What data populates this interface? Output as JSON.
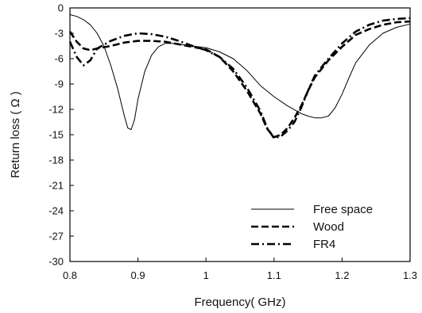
{
  "chart_data": {
    "type": "line",
    "title": "",
    "xlabel": "Frequency( GHz)",
    "ylabel": "Return loss ( Ω )",
    "xlim": [
      0.8,
      1.3
    ],
    "ylim": [
      -30,
      0
    ],
    "xticks": [
      0.8,
      0.9,
      1.0,
      1.1,
      1.2,
      1.3
    ],
    "xtick_labels": [
      "0.8",
      "0.9",
      "1",
      "1.1",
      "1.2",
      "1.3"
    ],
    "yticks": [
      0,
      -3,
      -6,
      -9,
      -12,
      -15,
      -18,
      -21,
      -24,
      -27,
      -30
    ],
    "ytick_labels": [
      "0",
      "-3",
      "-6",
      "-9",
      "-12",
      "-15",
      "-18",
      "-21",
      "-24",
      "-27",
      "-30"
    ],
    "grid": false,
    "legend_position": "bottom-right",
    "series": [
      {
        "name": "Free space",
        "style": "solid",
        "color": "#000000",
        "x": [
          0.8,
          0.81,
          0.82,
          0.83,
          0.84,
          0.85,
          0.86,
          0.87,
          0.88,
          0.885,
          0.89,
          0.895,
          0.9,
          0.91,
          0.92,
          0.93,
          0.94,
          0.95,
          0.96,
          0.97,
          0.98,
          0.99,
          1.0,
          1.02,
          1.04,
          1.06,
          1.08,
          1.1,
          1.12,
          1.14,
          1.15,
          1.16,
          1.17,
          1.18,
          1.19,
          1.2,
          1.21,
          1.22,
          1.24,
          1.26,
          1.28,
          1.3
        ],
        "y": [
          -0.8,
          -1.0,
          -1.4,
          -2.0,
          -3.0,
          -4.5,
          -6.8,
          -9.5,
          -12.8,
          -14.2,
          -14.4,
          -13.2,
          -10.8,
          -7.5,
          -5.6,
          -4.6,
          -4.2,
          -4.2,
          -4.3,
          -4.4,
          -4.5,
          -4.6,
          -4.7,
          -5.2,
          -6.0,
          -7.4,
          -9.2,
          -10.5,
          -11.6,
          -12.5,
          -12.8,
          -13.0,
          -13.0,
          -12.8,
          -11.8,
          -10.2,
          -8.3,
          -6.5,
          -4.4,
          -3.0,
          -2.3,
          -1.9
        ]
      },
      {
        "name": "Wood",
        "style": "dashed",
        "color": "#000000",
        "x": [
          0.8,
          0.81,
          0.82,
          0.83,
          0.84,
          0.86,
          0.88,
          0.9,
          0.92,
          0.94,
          0.96,
          0.98,
          1.0,
          1.02,
          1.04,
          1.06,
          1.08,
          1.09,
          1.1,
          1.11,
          1.12,
          1.13,
          1.14,
          1.15,
          1.16,
          1.17,
          1.18,
          1.2,
          1.22,
          1.24,
          1.26,
          1.28,
          1.3
        ],
        "y": [
          -2.8,
          -4.0,
          -4.8,
          -5.0,
          -4.8,
          -4.5,
          -4.1,
          -3.9,
          -3.9,
          -4.0,
          -4.3,
          -4.6,
          -4.9,
          -5.8,
          -7.5,
          -9.8,
          -12.5,
          -14.3,
          -15.3,
          -15.0,
          -14.2,
          -13.0,
          -11.6,
          -9.8,
          -8.2,
          -7.2,
          -6.2,
          -4.6,
          -3.2,
          -2.5,
          -2.0,
          -1.7,
          -1.6
        ]
      },
      {
        "name": "FR4",
        "style": "dashdot",
        "color": "#000000",
        "x": [
          0.8,
          0.81,
          0.82,
          0.83,
          0.84,
          0.86,
          0.88,
          0.9,
          0.92,
          0.94,
          0.96,
          0.98,
          1.0,
          1.02,
          1.04,
          1.06,
          1.08,
          1.09,
          1.1,
          1.11,
          1.12,
          1.13,
          1.14,
          1.15,
          1.16,
          1.17,
          1.18,
          1.2,
          1.22,
          1.24,
          1.26,
          1.28,
          1.3
        ],
        "y": [
          -4.0,
          -5.8,
          -6.8,
          -6.2,
          -4.8,
          -3.9,
          -3.3,
          -3.0,
          -3.1,
          -3.4,
          -3.9,
          -4.5,
          -5.0,
          -5.8,
          -7.2,
          -9.4,
          -12.2,
          -14.2,
          -15.4,
          -15.2,
          -14.5,
          -13.5,
          -11.8,
          -9.8,
          -8.0,
          -7.0,
          -6.0,
          -4.2,
          -2.8,
          -2.0,
          -1.5,
          -1.3,
          -1.2
        ]
      }
    ]
  }
}
